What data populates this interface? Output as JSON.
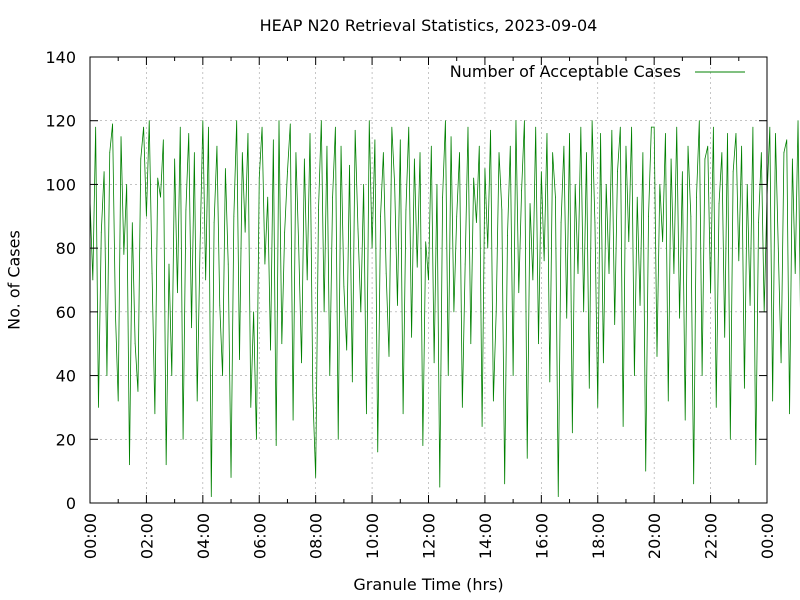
{
  "chart_data": {
    "type": "line",
    "title": "HEAP N20 Retrieval Statistics, 2023-09-04",
    "xlabel": "Granule Time (hrs)",
    "ylabel": "No. of Cases",
    "xlim": [
      "00:00",
      "24:00"
    ],
    "ylim": [
      0,
      140
    ],
    "x_ticks": [
      "00:00",
      "02:00",
      "04:00",
      "06:00",
      "08:00",
      "10:00",
      "12:00",
      "14:00",
      "16:00",
      "18:00",
      "20:00",
      "22:00",
      "00:00"
    ],
    "y_ticks": [
      0,
      20,
      40,
      60,
      80,
      100,
      120,
      140
    ],
    "grid": true,
    "legend_position": "top-right",
    "color": "#008000",
    "series": [
      {
        "name": "Number of Acceptable Cases",
        "color": "#008000",
        "x_hours_step": 0.1,
        "values": [
          95,
          70,
          118,
          30,
          85,
          104,
          40,
          110,
          119,
          60,
          32,
          115,
          78,
          100,
          12,
          88,
          50,
          35,
          108,
          118,
          90,
          120,
          72,
          28,
          102,
          96,
          114,
          12,
          75,
          40,
          108,
          66,
          118,
          20,
          92,
          116,
          55,
          110,
          32,
          80,
          120,
          70,
          118,
          2,
          88,
          112,
          62,
          40,
          105,
          75,
          8,
          90,
          120,
          45,
          110,
          85,
          116,
          30,
          60,
          20,
          102,
          118,
          75,
          96,
          48,
          114,
          18,
          120,
          50,
          85,
          104,
          119,
          26,
          110,
          80,
          44,
          108,
          70,
          116,
          34,
          8,
          92,
          120,
          60,
          112,
          40,
          96,
          118,
          20,
          112,
          68,
          48,
          106,
          38,
          117,
          86,
          60,
          100,
          28,
          120,
          80,
          114,
          16,
          90,
          110,
          72,
          46,
          118,
          100,
          62,
          114,
          28,
          92,
          118,
          52,
          108,
          74,
          110,
          18,
          82,
          70,
          112,
          44,
          100,
          5,
          96,
          120,
          40,
          115,
          60,
          90,
          110,
          30,
          75,
          118,
          50,
          102,
          88,
          112,
          24,
          105,
          80,
          117,
          32,
          60,
          110,
          92,
          6,
          84,
          112,
          40,
          120,
          66,
          98,
          120,
          14,
          94,
          70,
          118,
          50,
          104,
          76,
          116,
          38,
          110,
          96,
          2,
          88,
          112,
          58,
          116,
          22,
          100,
          72,
          118,
          60,
          110,
          36,
          120,
          88,
          30,
          116,
          44,
          100,
          72,
          117,
          56,
          104,
          118,
          24,
          112,
          82,
          118,
          40,
          96,
          62,
          110,
          10,
          90,
          118,
          118,
          46,
          100,
          82,
          116,
          32,
          108,
          72,
          118,
          58,
          104,
          26,
          112,
          90,
          6,
          96,
          120,
          40,
          108,
          112,
          66,
          118,
          30,
          94,
          110,
          52,
          116,
          20,
          104,
          116,
          76,
          112,
          36,
          100,
          62,
          118,
          12,
          88,
          110,
          60,
          96,
          118,
          32,
          116,
          80,
          44,
          110,
          114,
          28,
          108,
          72,
          120,
          50,
          98,
          116,
          82,
          22,
          112,
          66,
          118,
          120,
          40,
          104,
          88,
          116,
          56,
          112,
          28,
          92,
          118,
          70,
          16,
          110,
          118,
          48,
          100,
          84,
          117,
          34,
          112,
          80,
          112,
          26,
          106,
          72,
          118,
          44,
          102,
          60,
          119,
          32,
          110,
          90,
          14,
          98,
          116,
          54,
          112,
          84,
          118
        ]
      }
    ]
  }
}
